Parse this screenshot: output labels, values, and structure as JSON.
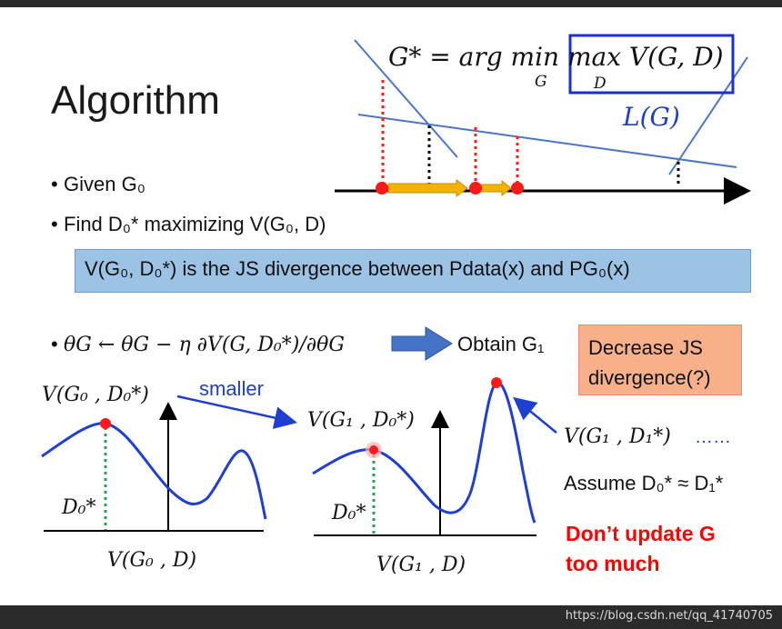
{
  "title": "Algorithm",
  "formula": {
    "main": "G* = arg min max V(G, D)",
    "min_sub": "G",
    "max_sub": "D",
    "l_g": "L(G)"
  },
  "bullets": {
    "given": "Given G₀",
    "find": "Find D₀* maximizing V(G₀, D)",
    "update": "θG ← θG − η ∂V(G, D₀*)/∂θG",
    "obtain": "Obtain G₁"
  },
  "js_box": "V(G₀, D₀*) is the JS divergence between Pdata(x) and PG₀(x)",
  "decrease_box": {
    "line1": "Decrease JS",
    "line2": "divergence(?)"
  },
  "left_plot": {
    "peak_label": "V(G₀ , D₀*)",
    "smaller": "smaller",
    "d_label": "D₀*",
    "x_label": "V(G₀ , D)"
  },
  "right_plot": {
    "peak_label": "V(G₁ , D₀*)",
    "d_label": "D₀*",
    "x_label": "V(G₁ , D)",
    "new_peak_label": "V(G₁ , D₁*)",
    "ellipsis": "……"
  },
  "assume": "Assume D₀* ≈ D₁*",
  "warning": {
    "line1": "Don’t update G",
    "line2": "too much"
  },
  "watermark": "https://blog.csdn.net/qq_41740705",
  "colors": {
    "blue_curve": "#1f3fd0",
    "red_dot": "#ff1a1a",
    "orange_arrow": "#f2b400",
    "green_dotted": "#2e9e5b",
    "line_blue": "#4b75c9",
    "box_blue": "#9cc3e6",
    "box_orange": "#f8b08a"
  }
}
